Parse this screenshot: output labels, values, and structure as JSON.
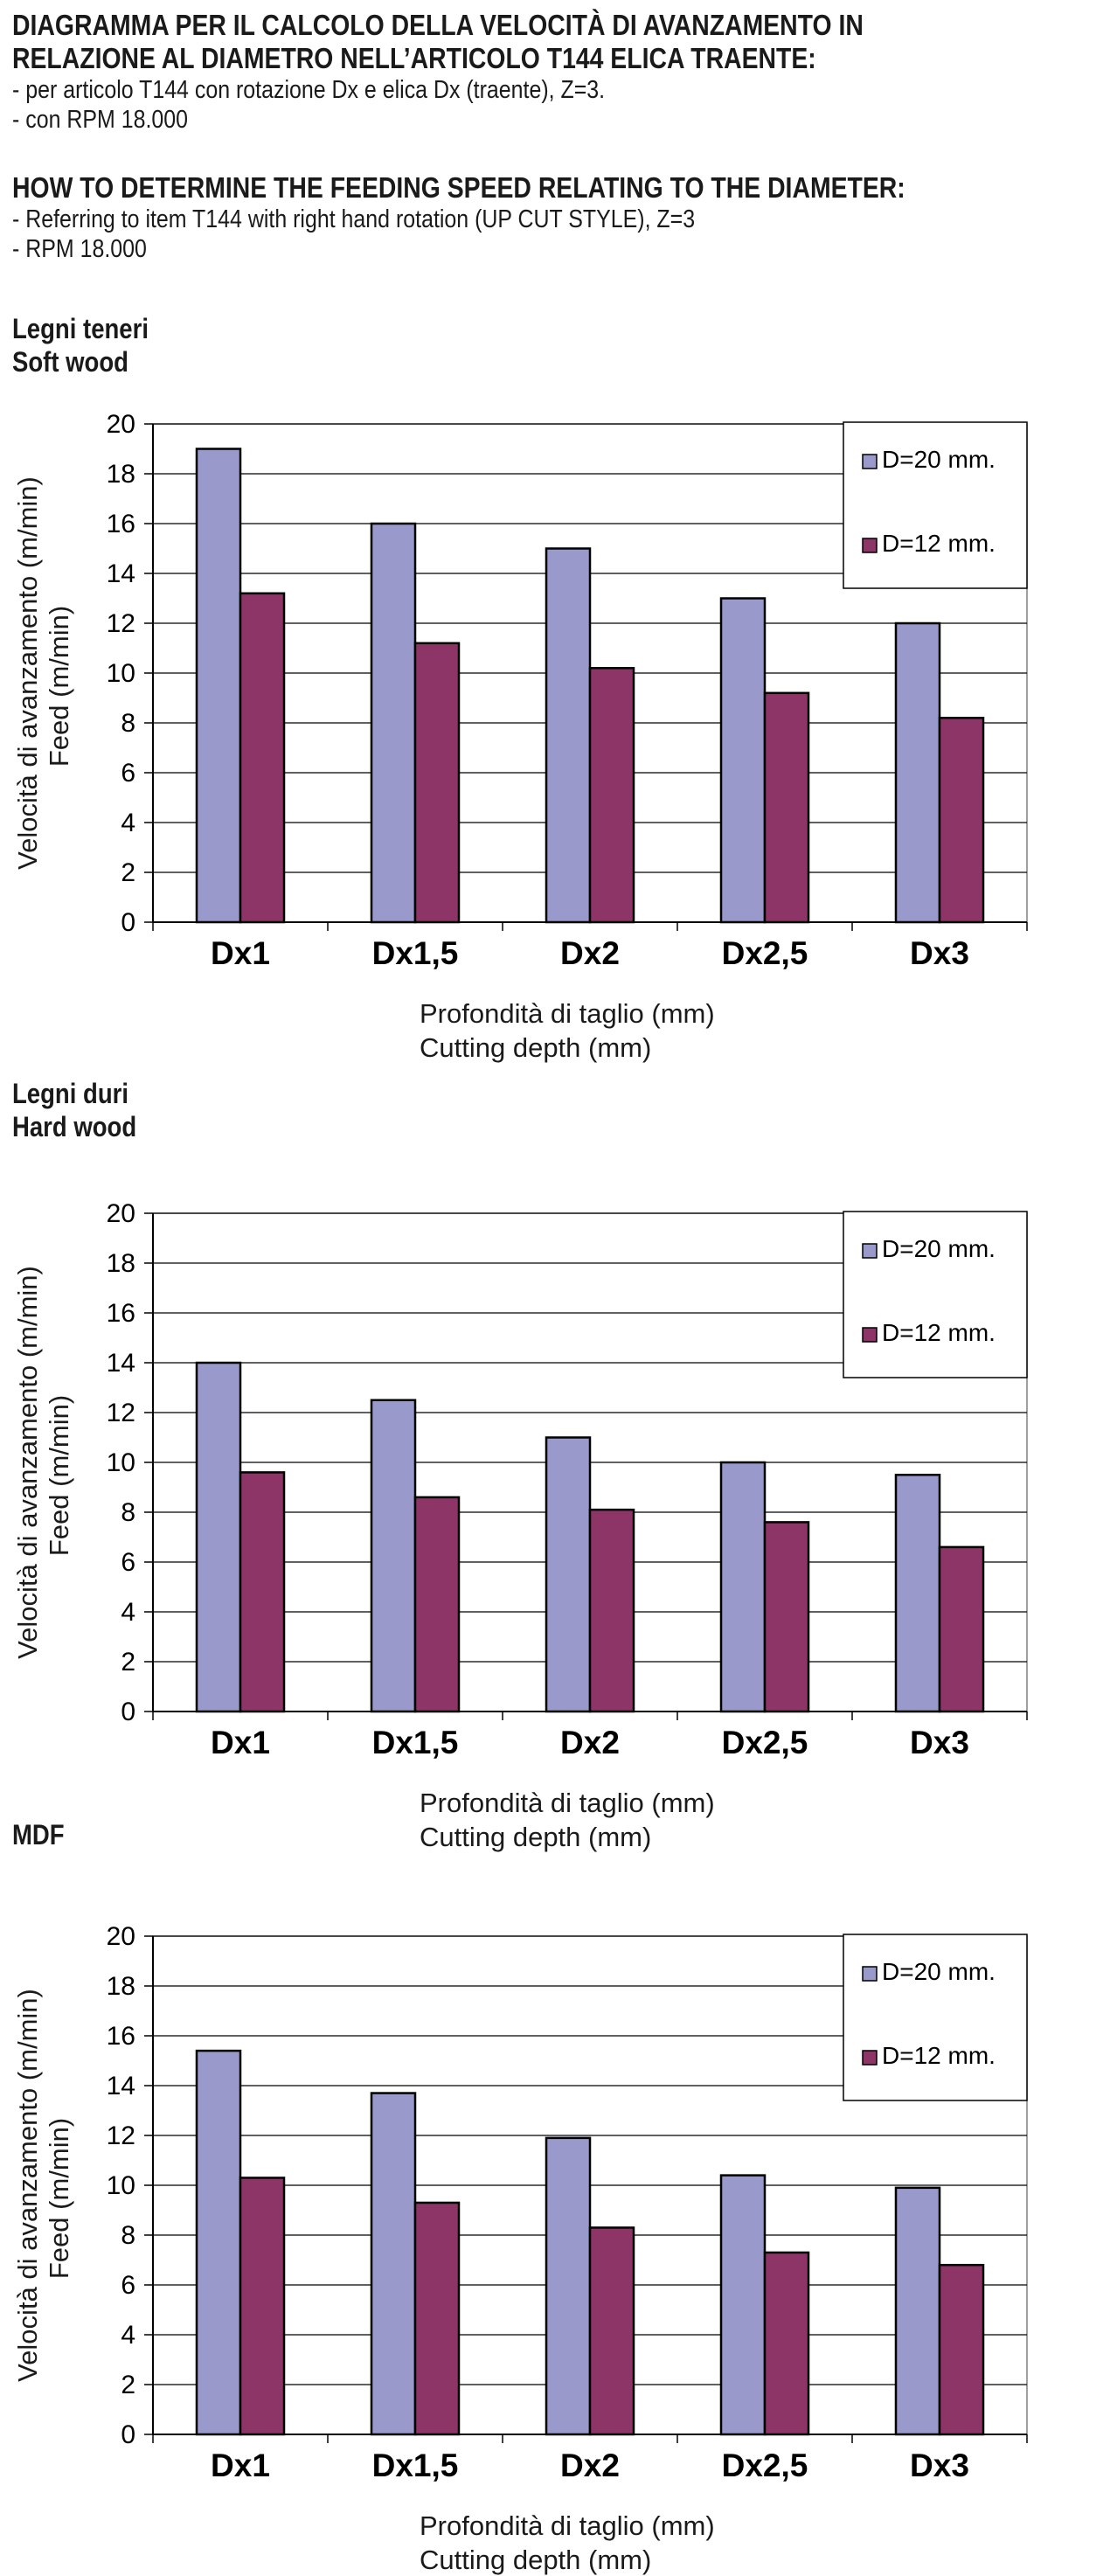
{
  "header": {
    "title_it_1": "DIAGRAMMA PER IL CALCOLO DELLA VELOCITÀ DI AVANZAMENTO IN",
    "title_it_2": "RELAZIONE AL DIAMETRO NELL’ARTICOLO T144 ELICA TRAENTE:",
    "line_it_1": "- per articolo T144 con rotazione Dx e elica Dx (traente), Z=3.",
    "line_it_2": "- con RPM 18.000",
    "title_en": "HOW TO DETERMINE THE FEEDING SPEED RELATING TO THE DIAMETER:",
    "line_en_1": "- Referring to item T144 with right hand rotation (UP CUT STYLE), Z=3",
    "line_en_2": "- RPM 18.000"
  },
  "sections": [
    {
      "title_it": "Legni teneri",
      "title_en": "Soft wood"
    },
    {
      "title_it": "Legni duri",
      "title_en": "Hard wood"
    },
    {
      "title_it": "MDF",
      "title_en": ""
    }
  ],
  "colors": {
    "series1": "#9999cc",
    "series2": "#8c3566",
    "grid": "#000000"
  },
  "chart_data": [
    {
      "type": "bar",
      "title": "Legni teneri / Soft wood",
      "categories": [
        "Dx1",
        "Dx1,5",
        "Dx2",
        "Dx2,5",
        "Dx3"
      ],
      "series": [
        {
          "name": "D=20 mm.",
          "values": [
            19,
            16,
            15,
            13,
            12
          ]
        },
        {
          "name": "D=12 mm.",
          "values": [
            13.2,
            11.2,
            10.2,
            9.2,
            8.2
          ]
        }
      ],
      "ylabel_1": "Velocità di avanzamento (m/min)",
      "ylabel_2": "Feed (m/min)",
      "xlabel_1": "Profondità di taglio (mm)",
      "xlabel_2": "Cutting depth (mm)",
      "ylim": [
        0,
        20
      ],
      "yticks": [
        0,
        2,
        4,
        6,
        8,
        10,
        12,
        14,
        16,
        18,
        20
      ],
      "grid": true,
      "legend": "top-right"
    },
    {
      "type": "bar",
      "title": "Legni duri / Hard wood",
      "categories": [
        "Dx1",
        "Dx1,5",
        "Dx2",
        "Dx2,5",
        "Dx3"
      ],
      "series": [
        {
          "name": "D=20 mm.",
          "values": [
            14,
            12.5,
            11,
            10,
            9.5
          ]
        },
        {
          "name": "D=12 mm.",
          "values": [
            9.6,
            8.6,
            8.1,
            7.6,
            6.6
          ]
        }
      ],
      "ylabel_1": "Velocità di avanzamento (m/min)",
      "ylabel_2": "Feed (m/min)",
      "xlabel_1": "Profondità di taglio (mm)",
      "xlabel_2": "Cutting depth (mm)",
      "ylim": [
        0,
        20
      ],
      "yticks": [
        0,
        2,
        4,
        6,
        8,
        10,
        12,
        14,
        16,
        18,
        20
      ],
      "grid": true,
      "legend": "top-right"
    },
    {
      "type": "bar",
      "title": "MDF",
      "categories": [
        "Dx1",
        "Dx1,5",
        "Dx2",
        "Dx2,5",
        "Dx3"
      ],
      "series": [
        {
          "name": "D=20 mm.",
          "values": [
            15.4,
            13.7,
            11.9,
            10.4,
            9.9
          ]
        },
        {
          "name": "D=12 mm.",
          "values": [
            10.3,
            9.3,
            8.3,
            7.3,
            6.8
          ]
        }
      ],
      "ylabel_1": "Velocità di avanzamento (m/min)",
      "ylabel_2": "Feed (m/min)",
      "xlabel_1": "Profondità di taglio (mm)",
      "xlabel_2": "Cutting depth (mm)",
      "ylim": [
        0,
        20
      ],
      "yticks": [
        0,
        2,
        4,
        6,
        8,
        10,
        12,
        14,
        16,
        18,
        20
      ],
      "grid": true,
      "legend": "top-right"
    }
  ]
}
